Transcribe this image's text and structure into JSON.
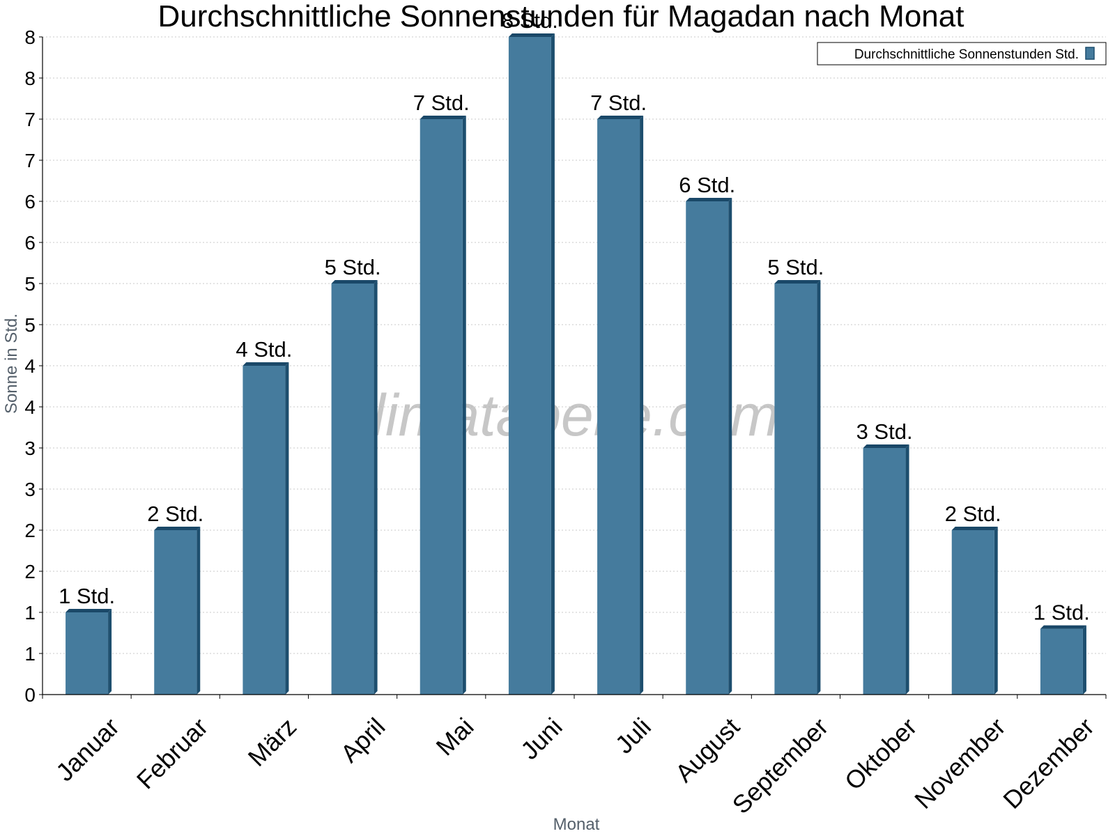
{
  "chart_data": {
    "type": "bar",
    "title": "Durchschnittliche Sonnenstunden für Magadan nach Monat",
    "xlabel": "Monat",
    "ylabel": "Sonne in Std.",
    "categories": [
      "Januar",
      "Februar",
      "März",
      "April",
      "Mai",
      "Juni",
      "Juli",
      "August",
      "September",
      "Oktober",
      "November",
      "Dezember"
    ],
    "series": [
      {
        "name": "Durchschnittliche Sonnenstunden Std.",
        "values": [
          1.0,
          2.0,
          4.0,
          5.0,
          7.0,
          8.0,
          7.0,
          6.0,
          5.0,
          3.0,
          2.0,
          0.8
        ],
        "labels": [
          "1 Std.",
          "2 Std.",
          "4 Std.",
          "5 Std.",
          "7 Std.",
          "8 Std.",
          "7 Std.",
          "6 Std.",
          "5 Std.",
          "3 Std.",
          "2 Std.",
          "1 Std."
        ]
      }
    ],
    "ylim": [
      0,
      8.0
    ],
    "yticks": [
      0,
      0.5,
      1.0,
      1.5,
      2.0,
      2.5,
      3.0,
      3.5,
      4.0,
      4.5,
      5.0,
      5.5,
      6.0,
      6.5,
      7.0,
      7.5,
      8.0
    ],
    "ytick_labels": [
      "0",
      "1",
      "1",
      "2",
      "2",
      "3",
      "3",
      "4",
      "4",
      "5",
      "5",
      "6",
      "6",
      "7",
      "7",
      "8",
      "8"
    ],
    "grid": true,
    "legend_position": "top-right",
    "watermark": "klimatabelle.com",
    "colors": {
      "bar": "#457b9d",
      "bar_dark": "#1d4e6e",
      "bar_top": "#1a4868"
    }
  }
}
